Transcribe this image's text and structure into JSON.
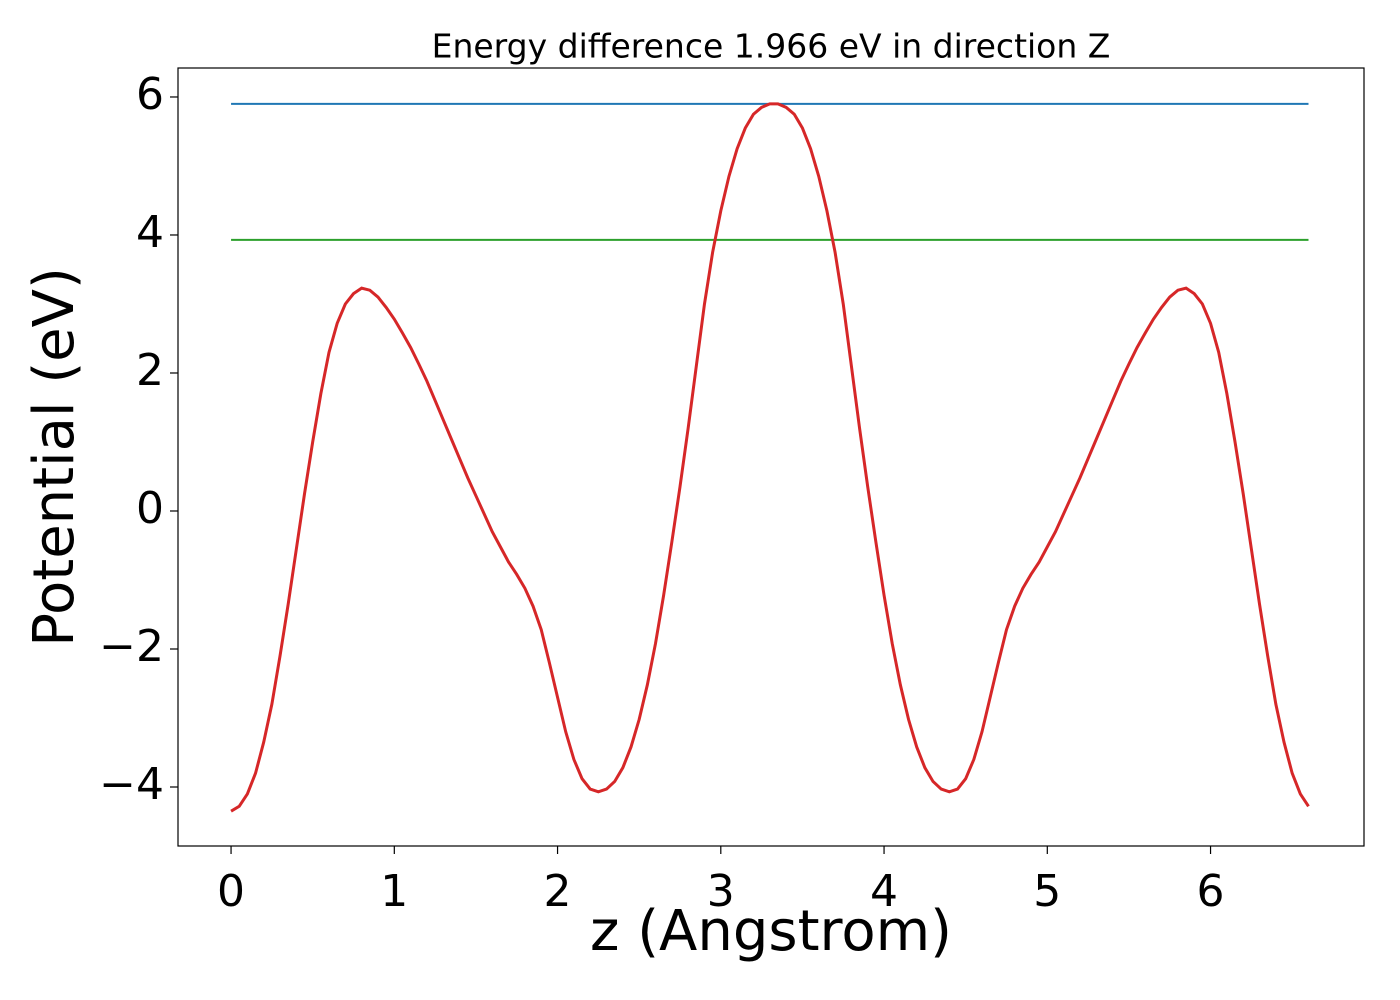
{
  "chart_data": {
    "type": "line",
    "title": "Energy difference 1.966 eV in direction Z",
    "x_label": "z (Angstrom)",
    "y_label": "Potential (eV)",
    "xlim": [
      -0.325,
      6.94
    ],
    "ylim": [
      -4.855,
      6.42
    ],
    "xticks": [
      0,
      1,
      2,
      3,
      4,
      5,
      6
    ],
    "yticks": [
      {
        "value": -4,
        "label": "−4"
      },
      {
        "value": -2,
        "label": "−2"
      },
      0,
      2,
      4,
      6
    ],
    "series": [
      {
        "color": "#1f77b4",
        "x": [
          0,
          6.6
        ],
        "values": [
          5.9,
          5.9
        ]
      },
      {
        "color": "#2ca02c",
        "x": [
          0,
          6.6
        ],
        "values": [
          3.93,
          3.93
        ]
      },
      {
        "color": "#d62728",
        "x": [
          0,
          0.05,
          0.1,
          0.15,
          0.2,
          0.25,
          0.3,
          0.35,
          0.4,
          0.45,
          0.5,
          0.55,
          0.6,
          0.65,
          0.7,
          0.75,
          0.8,
          0.85,
          0.9,
          0.95,
          1,
          1.05,
          1.1,
          1.15,
          1.2,
          1.25,
          1.3,
          1.35,
          1.4,
          1.45,
          1.5,
          1.55,
          1.6,
          1.65,
          1.7,
          1.75,
          1.8,
          1.85,
          1.9,
          1.95,
          2,
          2.05,
          2.1,
          2.15,
          2.2,
          2.25,
          2.3,
          2.35,
          2.4,
          2.45,
          2.5,
          2.55,
          2.6,
          2.65,
          2.7,
          2.75,
          2.8,
          2.85,
          2.9,
          2.95,
          3,
          3.05,
          3.1,
          3.15,
          3.2,
          3.25,
          3.3,
          3.35,
          3.4,
          3.45,
          3.5,
          3.55,
          3.6,
          3.65,
          3.7,
          3.75,
          3.8,
          3.85,
          3.9,
          3.95,
          4,
          4.05,
          4.1,
          4.15,
          4.2,
          4.25,
          4.3,
          4.35,
          4.4,
          4.45,
          4.5,
          4.55,
          4.6,
          4.65,
          4.7,
          4.75,
          4.8,
          4.85,
          4.9,
          4.95,
          5,
          5.05,
          5.1,
          5.15,
          5.2,
          5.25,
          5.3,
          5.35,
          5.4,
          5.45,
          5.5,
          5.55,
          5.6,
          5.65,
          5.7,
          5.75,
          5.8,
          5.85,
          5.9,
          5.95,
          6,
          6.05,
          6.1,
          6.15,
          6.2,
          6.25,
          6.3,
          6.35,
          6.4,
          6.45,
          6.5,
          6.55,
          6.6
        ],
        "values": [
          -4.35,
          -4.28,
          -4.1,
          -3.8,
          -3.35,
          -2.8,
          -2.1,
          -1.35,
          -0.55,
          0.25,
          1.0,
          1.7,
          2.3,
          2.72,
          3.0,
          3.15,
          3.23,
          3.2,
          3.1,
          2.95,
          2.78,
          2.58,
          2.37,
          2.13,
          1.88,
          1.6,
          1.32,
          1.04,
          0.76,
          0.48,
          0.22,
          -0.04,
          -0.3,
          -0.52,
          -0.74,
          -0.92,
          -1.12,
          -1.38,
          -1.72,
          -2.2,
          -2.7,
          -3.2,
          -3.6,
          -3.88,
          -4.03,
          -4.07,
          -4.03,
          -3.92,
          -3.72,
          -3.42,
          -3.02,
          -2.52,
          -1.92,
          -1.22,
          -0.45,
          0.35,
          1.2,
          2.1,
          3.0,
          3.75,
          4.35,
          4.85,
          5.25,
          5.55,
          5.75,
          5.85,
          5.9,
          5.9,
          5.85,
          5.75,
          5.55,
          5.25,
          4.85,
          4.35,
          3.75,
          3.0,
          2.1,
          1.2,
          0.35,
          -0.45,
          -1.22,
          -1.92,
          -2.52,
          -3.02,
          -3.42,
          -3.72,
          -3.92,
          -4.03,
          -4.07,
          -4.03,
          -3.88,
          -3.6,
          -3.2,
          -2.7,
          -2.2,
          -1.72,
          -1.38,
          -1.12,
          -0.92,
          -0.74,
          -0.52,
          -0.3,
          -0.04,
          0.22,
          0.48,
          0.76,
          1.04,
          1.32,
          1.6,
          1.88,
          2.13,
          2.37,
          2.58,
          2.78,
          2.95,
          3.1,
          3.2,
          3.23,
          3.15,
          3.0,
          2.72,
          2.3,
          1.7,
          1.0,
          0.25,
          -0.55,
          -1.35,
          -2.1,
          -2.8,
          -3.35,
          -3.8,
          -4.1,
          -4.28
        ]
      }
    ]
  }
}
